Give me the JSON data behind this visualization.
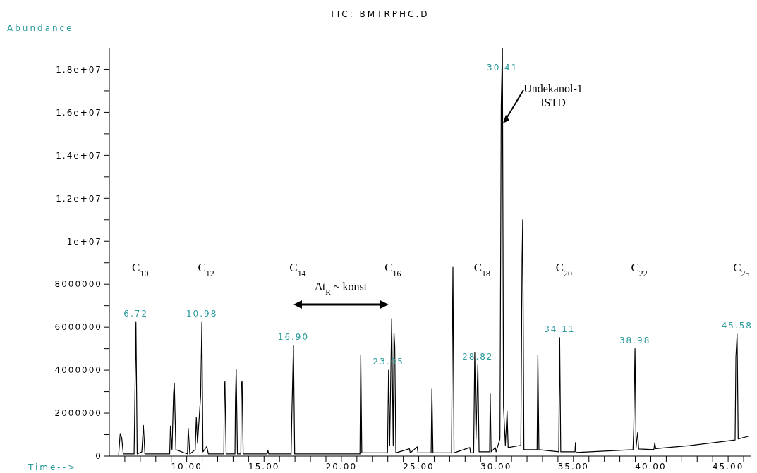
{
  "chart_data": {
    "type": "line",
    "title": "TIC: BMTRPHC.D",
    "xlabel": "Time-->",
    "ylabel": "Abundance",
    "color": "#000000",
    "x": [
      5.1,
      5.6,
      5.7,
      5.8,
      5.9,
      6.6,
      6.72,
      6.8,
      7.1,
      7.2,
      7.3,
      8.9,
      8.95,
      9.05,
      9.15,
      9.2,
      9.3,
      10.05,
      10.1,
      10.2,
      10.55,
      10.62,
      10.7,
      10.9,
      10.98,
      11.05,
      11.3,
      11.4,
      12.4,
      12.43,
      12.47,
      12.55,
      13.12,
      13.15,
      13.2,
      13.28,
      13.5,
      13.53,
      13.58,
      13.65,
      15.2,
      15.25,
      15.3,
      16.75,
      16.8,
      16.9,
      16.98,
      21.2,
      21.25,
      21.32,
      22.98,
      23.05,
      23.12,
      23.25,
      23.35,
      23.4,
      23.45,
      23.52,
      24.4,
      24.45,
      24.9,
      24.95,
      25.8,
      25.85,
      25.92,
      27.12,
      27.15,
      27.21,
      27.28,
      28.3,
      28.35,
      28.55,
      28.62,
      28.7,
      28.82,
      28.9,
      29.58,
      29.62,
      29.68,
      29.95,
      30.0,
      30.25,
      30.33,
      30.41,
      30.48,
      30.6,
      30.71,
      30.78,
      31.6,
      31.68,
      31.72,
      31.8,
      32.65,
      32.7,
      32.77,
      34.05,
      34.11,
      34.18,
      35.1,
      35.13,
      35.17,
      38.85,
      38.9,
      38.98,
      39.05,
      39.15,
      39.22,
      40.2,
      40.26,
      40.32,
      42.5,
      45.45,
      45.5,
      45.58,
      45.65,
      46.3
    ],
    "values": [
      50000,
      50000,
      1050000,
      850000,
      100000,
      100000,
      6230000,
      100000,
      200000,
      1430000,
      100000,
      100000,
      1400000,
      300000,
      2900000,
      3400000,
      300000,
      100000,
      1300000,
      100000,
      300000,
      1800000,
      600000,
      2800000,
      6230000,
      200000,
      450000,
      100000,
      100000,
      3000000,
      3480000,
      100000,
      100000,
      2600000,
      4050000,
      100000,
      100000,
      3400000,
      3470000,
      100000,
      100000,
      270000,
      100000,
      100000,
      2000000,
      5140000,
      100000,
      100000,
      4720000,
      150000,
      150000,
      4000000,
      500000,
      6400000,
      500000,
      5740000,
      5100000,
      150000,
      340000,
      150000,
      430000,
      150000,
      150000,
      3120000,
      150000,
      150000,
      3500000,
      8790000,
      150000,
      400000,
      150000,
      150000,
      4810000,
      800000,
      4240000,
      200000,
      200000,
      2900000,
      200000,
      400000,
      200000,
      800000,
      16300000,
      19000000,
      2300000,
      500000,
      2100000,
      400000,
      500000,
      9200000,
      11000000,
      300000,
      300000,
      4720000,
      300000,
      200000,
      5520000,
      200000,
      200000,
      630000,
      170000,
      300000,
      1300000,
      5000000,
      400000,
      1100000,
      330000,
      300000,
      630000,
      350000,
      490000,
      750000,
      4600000,
      5680000,
      800000,
      920000
    ],
    "xlim": [
      5,
      46.5
    ],
    "xticks": [
      {
        "value": 6,
        "label": null
      },
      {
        "value": 7,
        "label": null
      },
      {
        "value": 8,
        "label": null
      },
      {
        "value": 9,
        "label": null
      },
      {
        "value": 10,
        "label": "10.00"
      },
      {
        "value": 11,
        "label": null
      },
      {
        "value": 12,
        "label": null
      },
      {
        "value": 13,
        "label": null
      },
      {
        "value": 14,
        "label": null
      },
      {
        "value": 15,
        "label": "15.00"
      },
      {
        "value": 16,
        "label": null
      },
      {
        "value": 17,
        "label": null
      },
      {
        "value": 18,
        "label": null
      },
      {
        "value": 19,
        "label": null
      },
      {
        "value": 20,
        "label": "20.00"
      },
      {
        "value": 21,
        "label": null
      },
      {
        "value": 22,
        "label": null
      },
      {
        "value": 23,
        "label": null
      },
      {
        "value": 24,
        "label": null
      },
      {
        "value": 25,
        "label": "25.00"
      },
      {
        "value": 26,
        "label": null
      },
      {
        "value": 27,
        "label": null
      },
      {
        "value": 28,
        "label": null
      },
      {
        "value": 29,
        "label": null
      },
      {
        "value": 30,
        "label": "30.00"
      },
      {
        "value": 31,
        "label": null
      },
      {
        "value": 32,
        "label": null
      },
      {
        "value": 33,
        "label": null
      },
      {
        "value": 34,
        "label": null
      },
      {
        "value": 35,
        "label": "35.00"
      },
      {
        "value": 36,
        "label": null
      },
      {
        "value": 37,
        "label": null
      },
      {
        "value": 38,
        "label": null
      },
      {
        "value": 39,
        "label": null
      },
      {
        "value": 40,
        "label": "40.00"
      },
      {
        "value": 41,
        "label": null
      },
      {
        "value": 42,
        "label": null
      },
      {
        "value": 43,
        "label": null
      },
      {
        "value": 44,
        "label": null
      },
      {
        "value": 45,
        "label": "45.00"
      },
      {
        "value": 46,
        "label": null
      }
    ],
    "ylim": [
      0,
      19000000
    ],
    "yticks": [
      0,
      {
        "value": 1000000,
        "label": null
      },
      2000000,
      {
        "value": 3000000,
        "label": null
      },
      4000000,
      {
        "value": 5000000,
        "label": null
      },
      6000000,
      {
        "value": 7000000,
        "label": null
      },
      8000000,
      {
        "value": 9000000,
        "label": null
      },
      {
        "value": 10000000,
        "label": "1e+07"
      },
      {
        "value": 11000000,
        "label": null
      },
      {
        "value": 12000000,
        "label": "1.2e+07"
      },
      {
        "value": 13000000,
        "label": null
      },
      {
        "value": 14000000,
        "label": "1.4e+07"
      },
      {
        "value": 15000000,
        "label": null
      },
      {
        "value": 16000000,
        "label": "1.6e+07"
      },
      {
        "value": 17000000,
        "label": null
      },
      {
        "value": 18000000,
        "label": "1.8e+07"
      }
    ],
    "annotations": [
      {
        "text": "6.72",
        "x": 6.72,
        "y": 6230000
      },
      {
        "text": "10.98",
        "x": 10.98,
        "y": 6230000
      },
      {
        "text": "16.90",
        "x": 16.9,
        "y": 5140000
      },
      {
        "text": "23.05",
        "x": 23.05,
        "y": 4000000
      },
      {
        "text": "28.82",
        "x": 28.82,
        "y": 4240000
      },
      {
        "text": "30.41",
        "x": 30.41,
        "y": 19000000
      },
      {
        "text": "34.11",
        "x": 34.11,
        "y": 5520000
      },
      {
        "text": "38.98",
        "x": 38.98,
        "y": 5000000
      },
      {
        "text": "45.58",
        "x": 45.58,
        "y": 5680000
      },
      "C$_{10}$",
      "C$_{12}$",
      "C$_{14}$",
      "C$_{16}$",
      "C$_{18}$",
      "C$_{20}$",
      "C$_{22}$",
      "C$_{25}$",
      "Δt$_{R}$ ~ konst",
      {
        "text": "Undekanol-1 ISTD",
        "x": 30.4,
        "y": 15500000
      }
    ]
  }
}
